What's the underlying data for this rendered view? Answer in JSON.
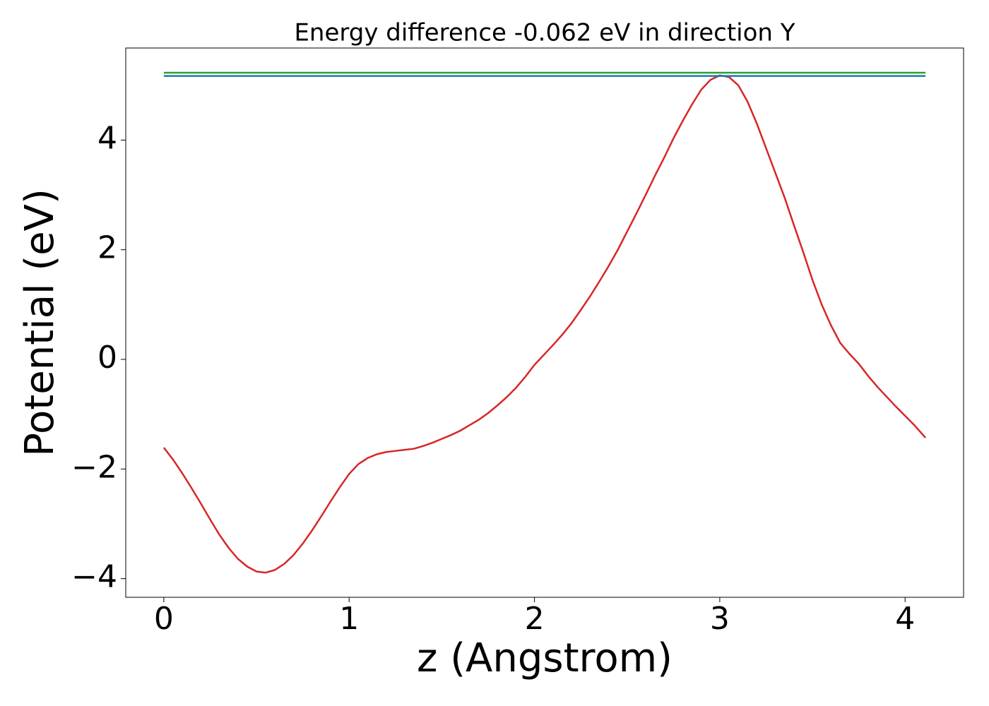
{
  "chart_data": {
    "type": "line",
    "title": "Energy difference -0.062 eV in direction Y",
    "x_label": "z (Angstrom)",
    "y_label": "Potential (eV)",
    "xlim": [
      -0.2055,
      4.3155
    ],
    "ylim": [
      -4.34,
      5.68
    ],
    "xticks": [
      0,
      1,
      2,
      3,
      4
    ],
    "yticks": [
      {
        "value": -4,
        "label": "−4"
      },
      {
        "value": -2,
        "label": "−2"
      },
      0,
      2,
      4
    ],
    "grid": false,
    "series": [
      {
        "color": "#d62728",
        "x": [
          0,
          0.05,
          0.1,
          0.15,
          0.2,
          0.25,
          0.3,
          0.35,
          0.4,
          0.45,
          0.5,
          0.55,
          0.6,
          0.65,
          0.7,
          0.75,
          0.8,
          0.85,
          0.9,
          0.95,
          1.0,
          1.05,
          1.1,
          1.15,
          1.2,
          1.25,
          1.3,
          1.35,
          1.4,
          1.45,
          1.5,
          1.55,
          1.6,
          1.65,
          1.7,
          1.75,
          1.8,
          1.85,
          1.9,
          1.95,
          2.0,
          2.05,
          2.1,
          2.15,
          2.2,
          2.25,
          2.3,
          2.35,
          2.4,
          2.45,
          2.5,
          2.55,
          2.6,
          2.65,
          2.7,
          2.75,
          2.8,
          2.85,
          2.9,
          2.95,
          3.0,
          3.05,
          3.1,
          3.15,
          3.2,
          3.25,
          3.3,
          3.35,
          3.4,
          3.45,
          3.5,
          3.55,
          3.6,
          3.65,
          3.7,
          3.75,
          3.8,
          3.85,
          3.9,
          3.95,
          4.0,
          4.05,
          4.11
        ],
        "values": [
          -1.61,
          -1.83,
          -2.08,
          -2.35,
          -2.63,
          -2.92,
          -3.2,
          -3.44,
          -3.64,
          -3.78,
          -3.87,
          -3.89,
          -3.84,
          -3.73,
          -3.57,
          -3.36,
          -3.12,
          -2.86,
          -2.59,
          -2.33,
          -2.09,
          -1.91,
          -1.8,
          -1.73,
          -1.69,
          -1.67,
          -1.65,
          -1.63,
          -1.58,
          -1.52,
          -1.45,
          -1.38,
          -1.3,
          -1.2,
          -1.1,
          -0.98,
          -0.84,
          -0.69,
          -0.52,
          -0.32,
          -0.1,
          0.08,
          0.26,
          0.45,
          0.66,
          0.9,
          1.15,
          1.42,
          1.7,
          2.0,
          2.33,
          2.66,
          3.0,
          3.35,
          3.68,
          4.03,
          4.35,
          4.65,
          4.92,
          5.1,
          5.18,
          5.15,
          5.0,
          4.7,
          4.3,
          3.85,
          3.4,
          2.95,
          2.45,
          1.96,
          1.45,
          1.0,
          0.62,
          0.3,
          0.1,
          -0.08,
          -0.3,
          -0.5,
          -0.68,
          -0.86,
          -1.03,
          -1.2,
          -1.43
        ]
      },
      {
        "color": "#2ca02c",
        "x": [
          0,
          4.11
        ],
        "values": [
          5.23,
          5.23
        ]
      },
      {
        "color": "#1f77b4",
        "x": [
          0,
          4.11
        ],
        "values": [
          5.17,
          5.17
        ]
      }
    ]
  }
}
